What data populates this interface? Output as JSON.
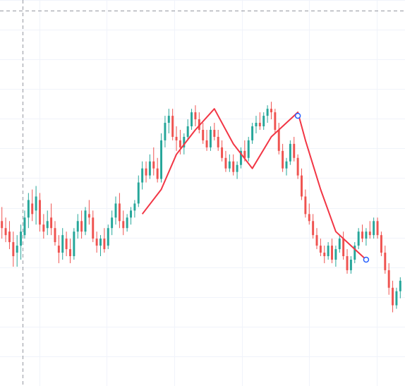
{
  "colors": {
    "background": "#ffffff",
    "grid": "#f0f3fa",
    "up": "#26a69a",
    "down": "#ef5350",
    "pattern_line": "#f23645",
    "crosshair": "#9598a1",
    "marker": "#2962ff"
  },
  "chart_data": {
    "type": "candlestick",
    "title": "",
    "xlabel": "",
    "ylabel": "",
    "grid": true,
    "crosshair": {
      "x": 6,
      "y": 107
    },
    "ylim": [
      0,
      110
    ],
    "xlim": [
      0,
      108
    ],
    "candles": [
      {
        "o": 47,
        "h": 51,
        "l": 42,
        "c": 45
      },
      {
        "o": 45,
        "h": 48,
        "l": 41,
        "c": 43
      },
      {
        "o": 44,
        "h": 47,
        "l": 39,
        "c": 41
      },
      {
        "o": 41,
        "h": 44,
        "l": 34,
        "c": 37
      },
      {
        "o": 38,
        "h": 43,
        "l": 34,
        "c": 40
      },
      {
        "o": 40,
        "h": 46,
        "l": 36,
        "c": 44
      },
      {
        "o": 43,
        "h": 50,
        "l": 42,
        "c": 48
      },
      {
        "o": 48,
        "h": 55,
        "l": 45,
        "c": 53
      },
      {
        "o": 52,
        "h": 56,
        "l": 47,
        "c": 49
      },
      {
        "o": 50,
        "h": 57,
        "l": 46,
        "c": 54
      },
      {
        "o": 53,
        "h": 55,
        "l": 44,
        "c": 46
      },
      {
        "o": 46,
        "h": 49,
        "l": 42,
        "c": 44
      },
      {
        "o": 45,
        "h": 50,
        "l": 43,
        "c": 47
      },
      {
        "o": 48,
        "h": 52,
        "l": 43,
        "c": 45
      },
      {
        "o": 45,
        "h": 47,
        "l": 40,
        "c": 41
      },
      {
        "o": 40,
        "h": 43,
        "l": 35,
        "c": 38
      },
      {
        "o": 38,
        "h": 45,
        "l": 36,
        "c": 43
      },
      {
        "o": 42,
        "h": 44,
        "l": 37,
        "c": 39
      },
      {
        "o": 39,
        "h": 42,
        "l": 35,
        "c": 37
      },
      {
        "o": 37,
        "h": 45,
        "l": 36,
        "c": 44
      },
      {
        "o": 44,
        "h": 49,
        "l": 42,
        "c": 47
      },
      {
        "o": 47,
        "h": 50,
        "l": 42,
        "c": 44
      },
      {
        "o": 44,
        "h": 51,
        "l": 43,
        "c": 50
      },
      {
        "o": 49,
        "h": 53,
        "l": 46,
        "c": 48
      },
      {
        "o": 48,
        "h": 50,
        "l": 41,
        "c": 42
      },
      {
        "o": 42,
        "h": 44,
        "l": 38,
        "c": 40
      },
      {
        "o": 40,
        "h": 43,
        "l": 37,
        "c": 42
      },
      {
        "o": 42,
        "h": 45,
        "l": 38,
        "c": 39
      },
      {
        "o": 40,
        "h": 46,
        "l": 39,
        "c": 45
      },
      {
        "o": 45,
        "h": 50,
        "l": 43,
        "c": 48
      },
      {
        "o": 48,
        "h": 54,
        "l": 46,
        "c": 52
      },
      {
        "o": 52,
        "h": 55,
        "l": 45,
        "c": 47
      },
      {
        "o": 47,
        "h": 50,
        "l": 43,
        "c": 45
      },
      {
        "o": 45,
        "h": 49,
        "l": 44,
        "c": 48
      },
      {
        "o": 48,
        "h": 51,
        "l": 46,
        "c": 50
      },
      {
        "o": 50,
        "h": 53,
        "l": 48,
        "c": 52
      },
      {
        "o": 52,
        "h": 60,
        "l": 51,
        "c": 58
      },
      {
        "o": 58,
        "h": 64,
        "l": 56,
        "c": 62
      },
      {
        "o": 62,
        "h": 64,
        "l": 58,
        "c": 60
      },
      {
        "o": 60,
        "h": 66,
        "l": 59,
        "c": 64
      },
      {
        "o": 64,
        "h": 68,
        "l": 60,
        "c": 62
      },
      {
        "o": 62,
        "h": 65,
        "l": 58,
        "c": 59
      },
      {
        "o": 59,
        "h": 72,
        "l": 58,
        "c": 70
      },
      {
        "o": 70,
        "h": 77,
        "l": 68,
        "c": 75
      },
      {
        "o": 75,
        "h": 79,
        "l": 72,
        "c": 77
      },
      {
        "o": 77,
        "h": 79,
        "l": 70,
        "c": 71
      },
      {
        "o": 71,
        "h": 74,
        "l": 67,
        "c": 70
      },
      {
        "o": 70,
        "h": 73,
        "l": 66,
        "c": 68
      },
      {
        "o": 68,
        "h": 72,
        "l": 66,
        "c": 71
      },
      {
        "o": 71,
        "h": 76,
        "l": 70,
        "c": 74
      },
      {
        "o": 74,
        "h": 79,
        "l": 73,
        "c": 78
      },
      {
        "o": 78,
        "h": 80,
        "l": 74,
        "c": 76
      },
      {
        "o": 76,
        "h": 78,
        "l": 72,
        "c": 73
      },
      {
        "o": 73,
        "h": 75,
        "l": 69,
        "c": 70
      },
      {
        "o": 70,
        "h": 73,
        "l": 67,
        "c": 68
      },
      {
        "o": 68,
        "h": 74,
        "l": 67,
        "c": 73
      },
      {
        "o": 73,
        "h": 75,
        "l": 70,
        "c": 71
      },
      {
        "o": 71,
        "h": 73,
        "l": 67,
        "c": 68
      },
      {
        "o": 68,
        "h": 70,
        "l": 64,
        "c": 65
      },
      {
        "o": 65,
        "h": 67,
        "l": 61,
        "c": 62
      },
      {
        "o": 62,
        "h": 66,
        "l": 61,
        "c": 64
      },
      {
        "o": 64,
        "h": 66,
        "l": 60,
        "c": 61
      },
      {
        "o": 61,
        "h": 64,
        "l": 59,
        "c": 63
      },
      {
        "o": 63,
        "h": 68,
        "l": 62,
        "c": 67
      },
      {
        "o": 67,
        "h": 70,
        "l": 64,
        "c": 65
      },
      {
        "o": 65,
        "h": 71,
        "l": 64,
        "c": 70
      },
      {
        "o": 70,
        "h": 75,
        "l": 69,
        "c": 74
      },
      {
        "o": 74,
        "h": 77,
        "l": 72,
        "c": 75
      },
      {
        "o": 75,
        "h": 78,
        "l": 73,
        "c": 74
      },
      {
        "o": 74,
        "h": 78,
        "l": 73,
        "c": 77
      },
      {
        "o": 77,
        "h": 80,
        "l": 75,
        "c": 79
      },
      {
        "o": 79,
        "h": 81,
        "l": 76,
        "c": 78
      },
      {
        "o": 78,
        "h": 79,
        "l": 72,
        "c": 73
      },
      {
        "o": 73,
        "h": 75,
        "l": 66,
        "c": 67
      },
      {
        "o": 67,
        "h": 69,
        "l": 61,
        "c": 62
      },
      {
        "o": 62,
        "h": 65,
        "l": 60,
        "c": 64
      },
      {
        "o": 64,
        "h": 70,
        "l": 63,
        "c": 69
      },
      {
        "o": 69,
        "h": 71,
        "l": 64,
        "c": 65
      },
      {
        "o": 65,
        "h": 66,
        "l": 59,
        "c": 60
      },
      {
        "o": 60,
        "h": 62,
        "l": 53,
        "c": 54
      },
      {
        "o": 54,
        "h": 56,
        "l": 48,
        "c": 49
      },
      {
        "o": 49,
        "h": 52,
        "l": 46,
        "c": 47
      },
      {
        "o": 47,
        "h": 49,
        "l": 42,
        "c": 43
      },
      {
        "o": 43,
        "h": 45,
        "l": 39,
        "c": 40
      },
      {
        "o": 40,
        "h": 42,
        "l": 37,
        "c": 38
      },
      {
        "o": 38,
        "h": 40,
        "l": 35,
        "c": 37
      },
      {
        "o": 37,
        "h": 41,
        "l": 36,
        "c": 40
      },
      {
        "o": 40,
        "h": 42,
        "l": 35,
        "c": 36
      },
      {
        "o": 36,
        "h": 40,
        "l": 34,
        "c": 39
      },
      {
        "o": 39,
        "h": 43,
        "l": 38,
        "c": 42
      },
      {
        "o": 42,
        "h": 44,
        "l": 36,
        "c": 37
      },
      {
        "o": 37,
        "h": 39,
        "l": 32,
        "c": 33
      },
      {
        "o": 33,
        "h": 37,
        "l": 32,
        "c": 36
      },
      {
        "o": 36,
        "h": 41,
        "l": 35,
        "c": 40
      },
      {
        "o": 40,
        "h": 45,
        "l": 39,
        "c": 44
      },
      {
        "o": 44,
        "h": 46,
        "l": 41,
        "c": 42
      },
      {
        "o": 42,
        "h": 45,
        "l": 40,
        "c": 44
      },
      {
        "o": 44,
        "h": 47,
        "l": 42,
        "c": 43
      },
      {
        "o": 43,
        "h": 48,
        "l": 42,
        "c": 47
      },
      {
        "o": 47,
        "h": 48,
        "l": 42,
        "c": 43
      },
      {
        "o": 43,
        "h": 44,
        "l": 37,
        "c": 38
      },
      {
        "o": 38,
        "h": 40,
        "l": 32,
        "c": 33
      },
      {
        "o": 33,
        "h": 35,
        "l": 26,
        "c": 28
      },
      {
        "o": 28,
        "h": 30,
        "l": 21,
        "c": 23
      },
      {
        "o": 23,
        "h": 28,
        "l": 22,
        "c": 27
      },
      {
        "o": 27,
        "h": 31,
        "l": 25,
        "c": 30
      }
    ],
    "pattern_line": {
      "name": "",
      "points": [
        {
          "x": 37,
          "y": 49
        },
        {
          "x": 42,
          "y": 56
        },
        {
          "x": 46,
          "y": 66
        },
        {
          "x": 51,
          "y": 73
        },
        {
          "x": 56,
          "y": 79
        },
        {
          "x": 61,
          "y": 69
        },
        {
          "x": 66,
          "y": 62
        },
        {
          "x": 71,
          "y": 71
        },
        {
          "x": 78,
          "y": 78
        },
        {
          "x": 80,
          "y": 70
        },
        {
          "x": 84,
          "y": 56
        },
        {
          "x": 88,
          "y": 44
        },
        {
          "x": 92,
          "y": 40
        },
        {
          "x": 96,
          "y": 36
        }
      ]
    },
    "markers": [
      {
        "x": 78,
        "y": 77
      },
      {
        "x": 96,
        "y": 36
      }
    ]
  }
}
